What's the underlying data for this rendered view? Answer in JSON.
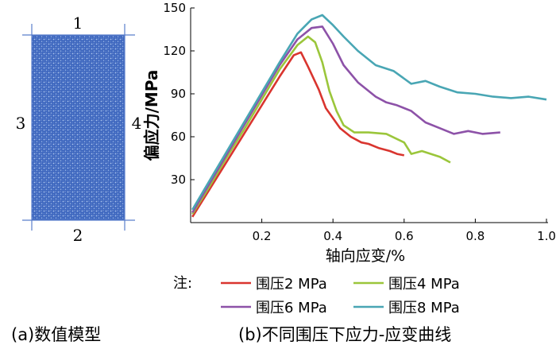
{
  "model": {
    "boundary_labels": [
      "1",
      "2",
      "3",
      "4"
    ],
    "caption": "(a)数值模型",
    "fill_color": "#4a72c4"
  },
  "chart_data": {
    "type": "line",
    "xlabel": "轴向应变/%",
    "ylabel": "偏应力/MPa",
    "xlim": [
      0,
      1.0
    ],
    "ylim": [
      0,
      150
    ],
    "xticks": [
      0.2,
      0.4,
      0.6,
      0.8,
      1.0
    ],
    "yticks": [
      30,
      60,
      90,
      120,
      150
    ],
    "grid": false,
    "legend_prefix": "注:",
    "caption": "(b)不同围压下应力-应变曲线",
    "series": [
      {
        "name": "围压2 MPa",
        "color": "#d9352f",
        "x": [
          0.005,
          0.05,
          0.1,
          0.15,
          0.2,
          0.25,
          0.29,
          0.31,
          0.33,
          0.36,
          0.38,
          0.4,
          0.42,
          0.45,
          0.48,
          0.5,
          0.53,
          0.56,
          0.58,
          0.6
        ],
        "y": [
          4,
          22,
          42,
          62,
          82,
          102,
          117,
          119,
          109,
          93,
          80,
          73,
          66,
          60,
          56,
          55,
          52,
          50,
          48,
          47
        ]
      },
      {
        "name": "围压4 MPa",
        "color": "#9bc63b",
        "x": [
          0.005,
          0.05,
          0.1,
          0.15,
          0.2,
          0.25,
          0.3,
          0.33,
          0.35,
          0.37,
          0.39,
          0.41,
          0.43,
          0.46,
          0.5,
          0.55,
          0.6,
          0.62,
          0.65,
          0.7,
          0.73
        ],
        "y": [
          6,
          24,
          45,
          65,
          86,
          107,
          124,
          130,
          126,
          112,
          92,
          78,
          68,
          63,
          63,
          62,
          56,
          48,
          50,
          46,
          42
        ]
      },
      {
        "name": "围压6 MPa",
        "color": "#8d52a8",
        "x": [
          0.005,
          0.05,
          0.1,
          0.15,
          0.2,
          0.25,
          0.3,
          0.34,
          0.37,
          0.4,
          0.43,
          0.47,
          0.52,
          0.55,
          0.58,
          0.62,
          0.66,
          0.7,
          0.74,
          0.78,
          0.82,
          0.87
        ],
        "y": [
          7,
          26,
          47,
          68,
          89,
          110,
          128,
          136,
          137,
          125,
          110,
          98,
          88,
          84,
          82,
          78,
          70,
          66,
          62,
          64,
          62,
          63
        ]
      },
      {
        "name": "围压8 MPa",
        "color": "#49a6b4",
        "x": [
          0.005,
          0.05,
          0.1,
          0.15,
          0.2,
          0.25,
          0.3,
          0.34,
          0.37,
          0.4,
          0.43,
          0.47,
          0.52,
          0.57,
          0.62,
          0.66,
          0.7,
          0.75,
          0.8,
          0.85,
          0.9,
          0.95,
          1.0
        ],
        "y": [
          9,
          28,
          49,
          70,
          91,
          112,
          132,
          142,
          145,
          138,
          130,
          120,
          110,
          106,
          97,
          99,
          95,
          91,
          90,
          88,
          87,
          88,
          86
        ]
      }
    ]
  }
}
